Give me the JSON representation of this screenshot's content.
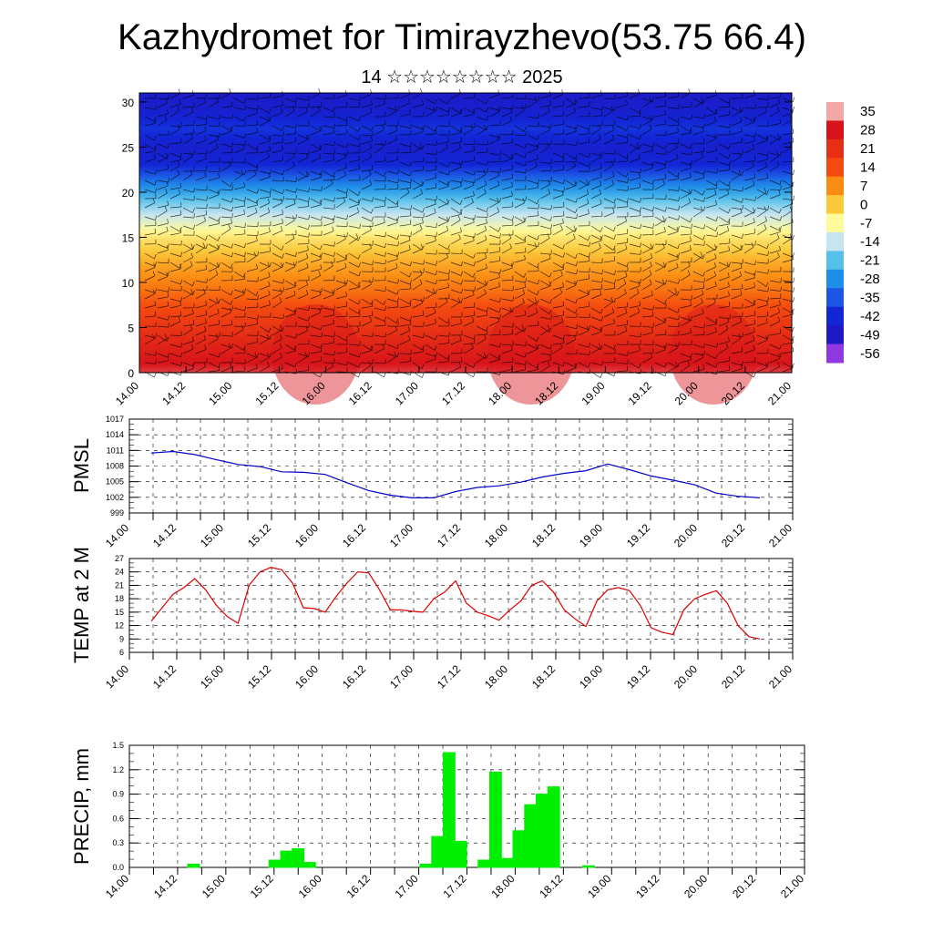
{
  "title": "Kazhydromet for Timirayzhevo(53.75 66.4)",
  "subtitle": "14 ☆☆☆☆☆☆☆☆ 2025",
  "time_labels": [
    "14.00",
    "14.12",
    "15.00",
    "15.12",
    "16.00",
    "16.12",
    "17.00",
    "17.12",
    "18.00",
    "18.12",
    "19.00",
    "19.12",
    "20.00",
    "20.12",
    "21.00"
  ],
  "chart_data": [
    {
      "type": "heatmap",
      "title": "",
      "x": [
        "14.00",
        "14.12",
        "15.00",
        "15.12",
        "16.00",
        "16.12",
        "17.00",
        "17.12",
        "18.00",
        "18.12",
        "19.00",
        "19.12",
        "20.00",
        "20.12",
        "21.00"
      ],
      "y_ticks": [
        0,
        5,
        10,
        15,
        20,
        25,
        30
      ],
      "ylim": [
        0,
        31
      ],
      "colorbar_labels": [
        "35",
        "28",
        "21",
        "14",
        "7",
        "0",
        "-7",
        "-14",
        "-21",
        "-28",
        "-35",
        "-42",
        "-49",
        "-56"
      ],
      "colormap_stops": [
        {
          "value": 35,
          "color": "#f3a7a7"
        },
        {
          "value": 28,
          "color": "#d8141a"
        },
        {
          "value": 14,
          "color": "#f44a10"
        },
        {
          "value": 7,
          "color": "#fb8c13"
        },
        {
          "value": 0,
          "color": "#fcc83c"
        },
        {
          "value": -7,
          "color": "#fffa9a"
        },
        {
          "value": -14,
          "color": "#c7e5ef"
        },
        {
          "value": -21,
          "color": "#55c0ea"
        },
        {
          "value": -28,
          "color": "#1f8ee8"
        },
        {
          "value": -35,
          "color": "#1b56e4"
        },
        {
          "value": -42,
          "color": "#1226d6"
        },
        {
          "value": -49,
          "color": "#1f19c4"
        },
        {
          "value": -56,
          "color": "#8f38e0"
        }
      ],
      "temperature_profile": [
        {
          "level": 0,
          "value": 30
        },
        {
          "level": 3,
          "value": 24
        },
        {
          "level": 6,
          "value": 17
        },
        {
          "level": 9,
          "value": 10
        },
        {
          "level": 12,
          "value": 4
        },
        {
          "level": 15,
          "value": -4
        },
        {
          "level": 17,
          "value": -12
        },
        {
          "level": 19,
          "value": -20
        },
        {
          "level": 21,
          "value": -30
        },
        {
          "level": 23,
          "value": -42
        },
        {
          "level": 25,
          "value": -45
        },
        {
          "level": 27,
          "value": -40
        },
        {
          "level": 29,
          "value": -45
        },
        {
          "level": 31,
          "value": -48
        }
      ],
      "overlay": "wind barbs"
    },
    {
      "type": "line",
      "ylabel": "PMSL",
      "y_ticks": [
        999,
        1002,
        1005,
        1008,
        1011,
        1014,
        1017
      ],
      "ylim": [
        999,
        1017
      ],
      "color": "#0000cc",
      "x": [
        "14.00",
        "14.06",
        "14.12",
        "14.18",
        "15.00",
        "15.06",
        "15.12",
        "15.18",
        "16.00",
        "16.06",
        "16.12",
        "16.18",
        "17.00",
        "17.06",
        "17.12",
        "17.18",
        "18.00",
        "18.06",
        "18.12",
        "18.18",
        "19.00",
        "19.06",
        "19.12",
        "19.18",
        "20.00",
        "20.06",
        "20.12",
        "20.18",
        "21.00"
      ],
      "values": [
        1010.5,
        1010.8,
        1010.2,
        1009.2,
        1008.3,
        1007.9,
        1006.9,
        1006.8,
        1006.4,
        1004.8,
        1003.3,
        1002.4,
        1001.9,
        1001.9,
        1003.1,
        1003.9,
        1004.2,
        1004.9,
        1005.9,
        1006.6,
        1007.1,
        1008.4,
        1007.3,
        1006.1,
        1005.3,
        1004.4,
        1002.8,
        1002.2,
        1001.9
      ]
    },
    {
      "type": "line",
      "ylabel": "TEMP at 2 M",
      "y_ticks": [
        6,
        9,
        12,
        15,
        18,
        21,
        24,
        27
      ],
      "ylim": [
        6,
        27
      ],
      "color": "#dd0000",
      "values": [
        13,
        16,
        19,
        20.5,
        22.5,
        20,
        16.5,
        14,
        12.5,
        21,
        24,
        25,
        24.5,
        21.5,
        16,
        15.8,
        15,
        18.5,
        21.5,
        24,
        23.8,
        20,
        15.5,
        15.5,
        15.2,
        15,
        18,
        19.5,
        22,
        17,
        15,
        14.2,
        13.2,
        15.5,
        17.5,
        21,
        22,
        19.5,
        15.5,
        13.5,
        11.8,
        17.5,
        20,
        20.5,
        19.8,
        16.5,
        11.5,
        10.5,
        10,
        15.5,
        18,
        19,
        19.8,
        17,
        12,
        9.5,
        9
      ]
    },
    {
      "type": "bar",
      "ylabel": "PRECIP, mm",
      "y_ticks": [
        "0.0",
        "0.3",
        "0.6",
        "0.9",
        "1.2",
        "1.5"
      ],
      "ylim": [
        0,
        1.5
      ],
      "color": "#00ee00",
      "bar_hours": 3,
      "values": [
        0,
        0,
        0,
        0,
        0.04,
        0,
        0,
        0,
        0,
        0,
        0,
        0.09,
        0.2,
        0.23,
        0.06,
        0,
        0,
        0,
        0,
        0,
        0,
        0,
        0,
        0,
        0.04,
        0.38,
        1.41,
        0.32,
        0,
        0.09,
        1.17,
        0.11,
        0.45,
        0.77,
        0.9,
        0.99,
        0,
        0,
        0.02,
        0,
        0,
        0,
        0,
        0,
        0,
        0,
        0,
        0,
        0,
        0,
        0,
        0,
        0,
        0,
        0,
        0,
        0
      ]
    }
  ]
}
